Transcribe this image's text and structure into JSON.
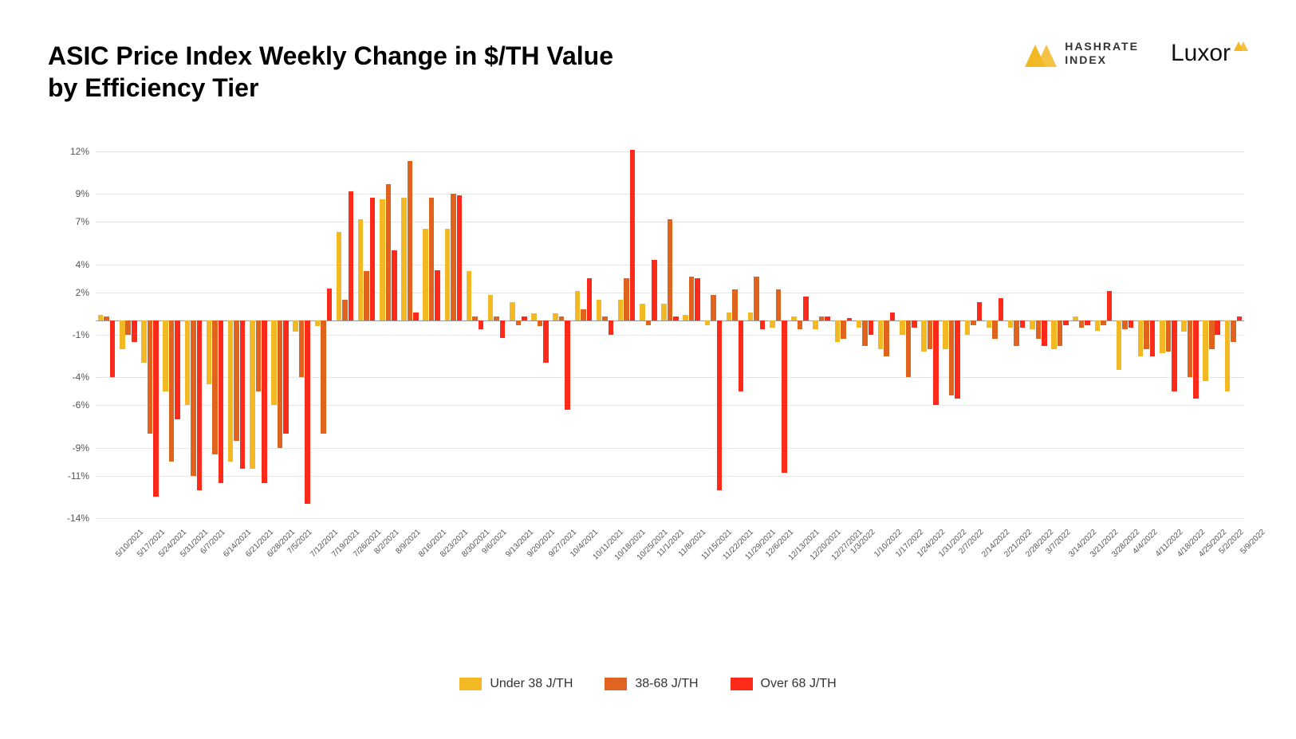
{
  "title_line1": "ASIC Price Index Weekly Change in $/TH Value",
  "title_line2": "by Efficiency Tier",
  "logos": {
    "hashrate_line1": "HASHRATE",
    "hashrate_line2": "INDEX",
    "hashrate_icon_color": "#f2b924",
    "luxor_text": "Luxor",
    "luxor_icon_color": "#f2b924"
  },
  "chart": {
    "type": "bar",
    "background_color": "#ffffff",
    "grid_color": "#e5e5e5",
    "zero_line_color": "#999999",
    "label_fontsize": 12,
    "xlabel_fontsize": 10,
    "ylim": [
      -14,
      12
    ],
    "yticks": [
      12,
      9,
      7,
      4,
      2,
      -1,
      -4,
      -6,
      -9,
      -11,
      -14
    ],
    "ytick_labels": [
      "12%",
      "9%",
      "7%",
      "4%",
      "2%",
      "-1%",
      "-4%",
      "-6%",
      "-9%",
      "-11%",
      "-14%"
    ],
    "series": [
      {
        "name": "Under 38 J/TH",
        "color": "#f2b924"
      },
      {
        "name": "38-68 J/TH",
        "color": "#e0641e"
      },
      {
        "name": "Over 68 J/TH",
        "color": "#ff2a1a"
      }
    ],
    "categories": [
      "5/10/2021",
      "5/17/2021",
      "5/24/2021",
      "5/31/2021",
      "6/7/2021",
      "6/14/2021",
      "6/21/2021",
      "6/28/2021",
      "7/5/2021",
      "7/12/2021",
      "7/19/2021",
      "7/26/2021",
      "8/2/2021",
      "8/9/2021",
      "8/16/2021",
      "8/23/2021",
      "8/30/2021",
      "9/6/2021",
      "9/13/2021",
      "9/20/2021",
      "9/27/2021",
      "10/4/2021",
      "10/11/2021",
      "10/18/2021",
      "10/25/2021",
      "11/1/2021",
      "11/8/2021",
      "11/15/2021",
      "11/22/2021",
      "11/29/2021",
      "12/6/2021",
      "12/13/2021",
      "12/20/2021",
      "12/27/2021",
      "1/3/2022",
      "1/10/2022",
      "1/17/2022",
      "1/24/2022",
      "1/31/2022",
      "2/7/2022",
      "2/14/2022",
      "2/21/2022",
      "2/28/2022",
      "3/7/2022",
      "3/14/2022",
      "3/21/2022",
      "3/28/2022",
      "4/4/2022",
      "4/11/2022",
      "4/18/2022",
      "4/25/2022",
      "5/2/2022",
      "5/9/2022"
    ],
    "data": [
      [
        0.4,
        0.3,
        -4.0
      ],
      [
        -2.0,
        -1.0,
        -1.5
      ],
      [
        -3.0,
        -8.0,
        -12.5
      ],
      [
        -5.0,
        -10.0,
        -7.0
      ],
      [
        -6.0,
        -11.0,
        -12.0
      ],
      [
        -4.5,
        -9.5,
        -11.5
      ],
      [
        -10.0,
        -8.5,
        -10.5
      ],
      [
        -10.5,
        -5.0,
        -11.5
      ],
      [
        -6.0,
        -9.0,
        -8.0
      ],
      [
        -0.8,
        -4.0,
        -13.0
      ],
      [
        -0.4,
        -8.0,
        2.3
      ],
      [
        6.3,
        1.5,
        9.2
      ],
      [
        7.2,
        3.5,
        8.7
      ],
      [
        8.6,
        9.7,
        5.0
      ],
      [
        8.7,
        11.3,
        0.6
      ],
      [
        6.5,
        8.7,
        3.6
      ],
      [
        6.5,
        9.0,
        8.9
      ],
      [
        3.5,
        0.3,
        -0.6
      ],
      [
        1.8,
        0.3,
        -1.2
      ],
      [
        1.3,
        -0.3,
        0.3
      ],
      [
        0.5,
        -0.4,
        -3.0
      ],
      [
        0.5,
        0.3,
        -6.3
      ],
      [
        2.1,
        0.8,
        3.0
      ],
      [
        1.5,
        0.3,
        -1.0
      ],
      [
        1.5,
        3.0,
        12.1
      ],
      [
        1.2,
        -0.3,
        4.3
      ],
      [
        1.2,
        7.2,
        0.3
      ],
      [
        0.4,
        3.1,
        3.0
      ],
      [
        -0.3,
        1.8,
        -12.0
      ],
      [
        0.6,
        2.2,
        -5.0
      ],
      [
        0.6,
        3.1,
        -0.6
      ],
      [
        -0.5,
        2.2,
        -10.8
      ],
      [
        0.3,
        -0.6,
        1.7
      ],
      [
        -0.6,
        0.3,
        0.3
      ],
      [
        -1.5,
        -1.3,
        0.2
      ],
      [
        -0.5,
        -1.8,
        -1.0
      ],
      [
        -2.0,
        -2.5,
        0.6
      ],
      [
        -1.0,
        -4.0,
        -0.5
      ],
      [
        -2.2,
        -2.0,
        -6.0
      ],
      [
        -2.0,
        -5.3,
        -5.5
      ],
      [
        -1.0,
        -0.3,
        1.3
      ],
      [
        -0.5,
        -1.3,
        1.6
      ],
      [
        -0.5,
        -1.8,
        -0.5
      ],
      [
        -0.6,
        -1.3,
        -1.8
      ],
      [
        -2.0,
        -1.8,
        -0.3
      ],
      [
        0.3,
        -0.5,
        -0.3
      ],
      [
        -0.7,
        -0.3,
        2.1
      ],
      [
        -3.5,
        -0.6,
        -0.5
      ],
      [
        -2.5,
        -2.0,
        -2.5
      ],
      [
        -2.3,
        -2.2,
        -5.0
      ],
      [
        -0.8,
        -4.0,
        -5.5
      ],
      [
        -4.3,
        -2.0,
        -1.0
      ],
      [
        -5.0,
        -1.5,
        0.3
      ]
    ]
  },
  "legend": [
    {
      "swatch": "#f2b924",
      "label": "Under 38 J/TH"
    },
    {
      "swatch": "#e0641e",
      "label": "38-68 J/TH"
    },
    {
      "swatch": "#ff2a1a",
      "label": "Over 68 J/TH"
    }
  ]
}
